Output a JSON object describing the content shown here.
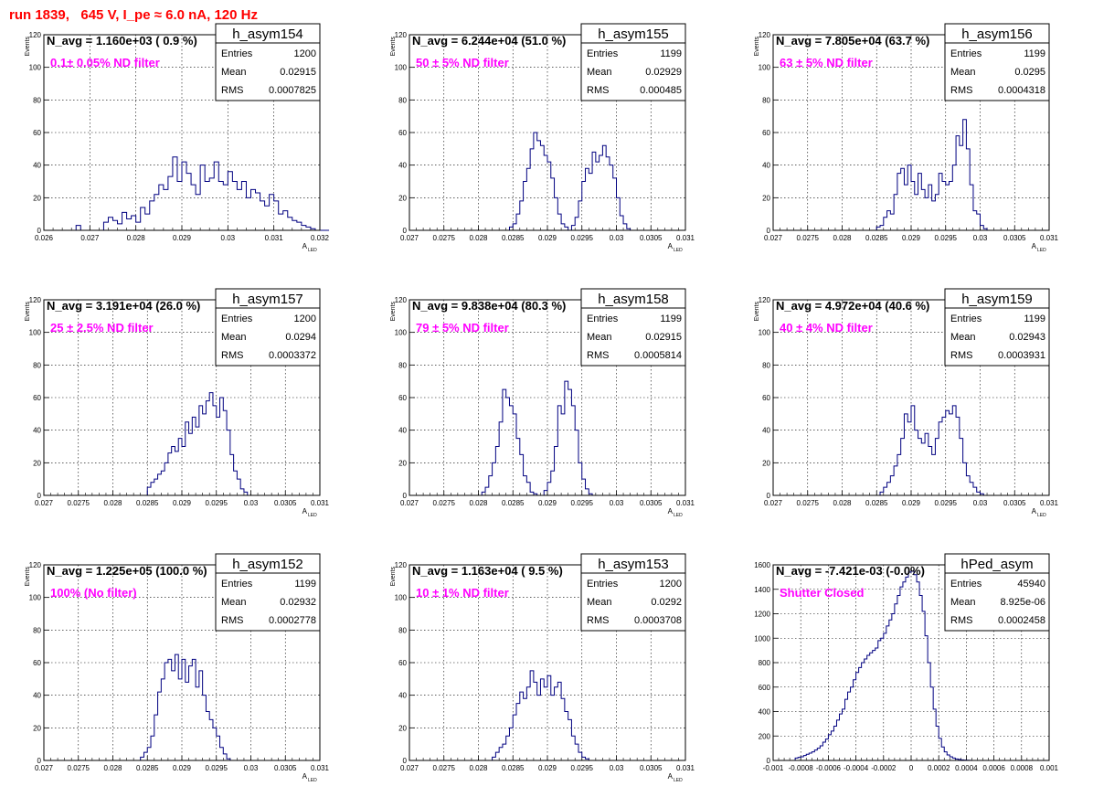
{
  "run_title": "run 1839,   645 V, I_pe ≈ 6.0 nA, 120 Hz",
  "colors": {
    "title": "#ff0000",
    "filter_label": "#ff00ff",
    "histogram": "#000080",
    "grid": "#000000"
  },
  "chart_data": [
    {
      "type": "histogram",
      "name": "h_asym154",
      "navg": "N_avg = 1.160e+03 ( 0.9 %)",
      "filter": "0.1± 0.05% ND filter",
      "stats": {
        "entries": "1200",
        "mean": "0.02915",
        "rms": "0.0007825"
      },
      "xlabel": "A",
      "xlabel_sub": "LED",
      "ylabel": "Events",
      "xlim": [
        0.026,
        0.032
      ],
      "ylim": [
        0,
        120
      ],
      "grid": true,
      "xticks": [
        "0.026",
        "0.027",
        "0.028",
        "0.029",
        "0.03",
        "0.031",
        "0.032"
      ],
      "yticks": [
        "0",
        "20",
        "40",
        "60",
        "80",
        "100",
        "120"
      ],
      "bins": {
        "start": 0.0267,
        "width": 0.0001,
        "values": [
          3,
          0,
          0,
          0,
          0,
          0,
          5,
          8,
          6,
          4,
          11,
          7,
          9,
          5,
          14,
          10,
          18,
          22,
          28,
          25,
          33,
          45,
          30,
          42,
          35,
          28,
          22,
          40,
          30,
          32,
          42,
          30,
          28,
          36,
          30,
          25,
          30,
          20,
          25,
          23,
          18,
          15,
          22,
          18,
          10,
          12,
          8,
          6,
          5,
          3,
          2,
          1,
          0,
          0,
          0
        ]
      }
    },
    {
      "type": "histogram",
      "name": "h_asym155",
      "navg": "N_avg = 6.244e+04 (51.0 %)",
      "filter": "50 ± 5% ND filter",
      "stats": {
        "entries": "1199",
        "mean": "0.02929",
        "rms": "0.000485"
      },
      "xlabel": "A",
      "xlabel_sub": "LED",
      "ylabel": "Events",
      "xlim": [
        0.027,
        0.031
      ],
      "ylim": [
        0,
        120
      ],
      "grid": true,
      "xticks": [
        "0.027",
        "0.0275",
        "0.028",
        "0.0285",
        "0.029",
        "0.0295",
        "0.03",
        "0.0305",
        "0.031"
      ],
      "yticks": [
        "0",
        "20",
        "40",
        "60",
        "80",
        "100",
        "120"
      ],
      "bins": {
        "start": 0.02845,
        "width": 5e-05,
        "values": [
          2,
          4,
          10,
          18,
          30,
          38,
          50,
          60,
          55,
          52,
          46,
          42,
          32,
          20,
          10,
          4,
          2,
          0,
          3,
          8,
          18,
          30,
          38,
          35,
          48,
          42,
          46,
          52,
          45,
          40,
          32,
          20,
          9,
          4,
          1,
          0
        ]
      }
    },
    {
      "type": "histogram",
      "name": "h_asym156",
      "navg": "N_avg = 7.805e+04 (63.7 %)",
      "filter": "63 ± 5% ND filter",
      "stats": {
        "entries": "1199",
        "mean": "0.0295",
        "rms": "0.0004318"
      },
      "xlabel": "A",
      "xlabel_sub": "LED",
      "ylabel": "Events",
      "xlim": [
        0.027,
        0.031
      ],
      "ylim": [
        0,
        120
      ],
      "grid": true,
      "xticks": [
        "0.027",
        "0.0275",
        "0.028",
        "0.0285",
        "0.029",
        "0.0295",
        "0.03",
        "0.0305",
        "0.031"
      ],
      "yticks": [
        "0",
        "20",
        "40",
        "60",
        "80",
        "100",
        "120"
      ],
      "bins": {
        "start": 0.0285,
        "width": 5e-05,
        "values": [
          2,
          3,
          8,
          12,
          10,
          22,
          35,
          38,
          28,
          40,
          30,
          22,
          35,
          25,
          20,
          28,
          18,
          22,
          35,
          30,
          28,
          30,
          40,
          58,
          52,
          68,
          50,
          28,
          12,
          10,
          3,
          1,
          0
        ]
      }
    },
    {
      "type": "histogram",
      "name": "h_asym157",
      "navg": "N_avg = 3.191e+04 (26.0 %)",
      "filter": "25 ± 2.5% ND filter",
      "stats": {
        "entries": "1200",
        "mean": "0.0294",
        "rms": "0.0003372"
      },
      "xlabel": "A",
      "xlabel_sub": "LED",
      "ylabel": "Events",
      "xlim": [
        0.027,
        0.031
      ],
      "ylim": [
        0,
        120
      ],
      "grid": true,
      "xticks": [
        "0.027",
        "0.0275",
        "0.028",
        "0.0285",
        "0.029",
        "0.0295",
        "0.03",
        "0.0305",
        "0.031"
      ],
      "yticks": [
        "0",
        "20",
        "40",
        "60",
        "80",
        "100",
        "120"
      ],
      "bins": {
        "start": 0.02845,
        "width": 5e-05,
        "values": [
          0,
          5,
          8,
          10,
          13,
          15,
          20,
          26,
          30,
          27,
          35,
          30,
          45,
          38,
          48,
          42,
          55,
          50,
          58,
          63,
          55,
          48,
          60,
          52,
          40,
          25,
          15,
          10,
          4,
          2,
          0
        ]
      }
    },
    {
      "type": "histogram",
      "name": "h_asym158",
      "navg": "N_avg = 9.838e+04 (80.3 %)",
      "filter": "79 ± 5% ND filter",
      "stats": {
        "entries": "1199",
        "mean": "0.02915",
        "rms": "0.0005814"
      },
      "xlabel": "A",
      "xlabel_sub": "LED",
      "ylabel": "Events",
      "xlim": [
        0.027,
        0.031
      ],
      "ylim": [
        0,
        120
      ],
      "grid": true,
      "xticks": [
        "0.027",
        "0.0275",
        "0.028",
        "0.0285",
        "0.029",
        "0.0295",
        "0.03",
        "0.0305",
        "0.031"
      ],
      "yticks": [
        "0",
        "20",
        "40",
        "60",
        "80",
        "100",
        "120"
      ],
      "bins": {
        "start": 0.02805,
        "width": 5e-05,
        "values": [
          2,
          5,
          12,
          20,
          30,
          45,
          65,
          60,
          55,
          50,
          35,
          25,
          12,
          8,
          2,
          1,
          0,
          0,
          3,
          8,
          15,
          30,
          55,
          50,
          70,
          65,
          55,
          40,
          20,
          10,
          4,
          1,
          0
        ]
      }
    },
    {
      "type": "histogram",
      "name": "h_asym159",
      "navg": "N_avg = 4.972e+04 (40.6 %)",
      "filter": "40 ± 4% ND filter",
      "stats": {
        "entries": "1199",
        "mean": "0.02943",
        "rms": "0.0003931"
      },
      "xlabel": "A",
      "xlabel_sub": "LED",
      "ylabel": "Events",
      "xlim": [
        0.027,
        0.031
      ],
      "ylim": [
        0,
        120
      ],
      "grid": true,
      "xticks": [
        "0.027",
        "0.0275",
        "0.028",
        "0.0285",
        "0.029",
        "0.0295",
        "0.03",
        "0.0305",
        "0.031"
      ],
      "yticks": [
        "0",
        "20",
        "40",
        "60",
        "80",
        "100",
        "120"
      ],
      "bins": {
        "start": 0.02855,
        "width": 5e-05,
        "values": [
          2,
          5,
          8,
          12,
          18,
          25,
          35,
          50,
          45,
          55,
          40,
          35,
          32,
          38,
          30,
          25,
          35,
          45,
          48,
          52,
          50,
          55,
          48,
          35,
          20,
          12,
          8,
          5,
          2,
          1
        ]
      }
    },
    {
      "type": "histogram",
      "name": "h_asym152",
      "navg": "N_avg = 1.225e+05 (100.0 %)",
      "filter": "100% (No filter)",
      "stats": {
        "entries": "1199",
        "mean": "0.02932",
        "rms": "0.0002778"
      },
      "xlabel": "A",
      "xlabel_sub": "LED",
      "ylabel": "Events",
      "xlim": [
        0.027,
        0.031
      ],
      "ylim": [
        0,
        120
      ],
      "grid": true,
      "xticks": [
        "0.027",
        "0.0275",
        "0.028",
        "0.0285",
        "0.029",
        "0.0295",
        "0.03",
        "0.0305",
        "0.031"
      ],
      "yticks": [
        "0",
        "20",
        "40",
        "60",
        "80",
        "100",
        "120"
      ],
      "bins": {
        "start": 0.0284,
        "width": 5e-05,
        "values": [
          2,
          5,
          8,
          15,
          28,
          42,
          50,
          60,
          62,
          55,
          65,
          50,
          62,
          48,
          58,
          62,
          45,
          55,
          40,
          30,
          25,
          20,
          15,
          8,
          4,
          1
        ]
      }
    },
    {
      "type": "histogram",
      "name": "h_asym153",
      "navg": "N_avg = 1.163e+04 ( 9.5 %)",
      "filter": "10 ± 1% ND filter",
      "stats": {
        "entries": "1200",
        "mean": "0.0292",
        "rms": "0.0003708"
      },
      "xlabel": "A",
      "xlabel_sub": "LED",
      "ylabel": "Events",
      "xlim": [
        0.027,
        0.031
      ],
      "ylim": [
        0,
        120
      ],
      "grid": true,
      "xticks": [
        "0.027",
        "0.0275",
        "0.028",
        "0.0285",
        "0.029",
        "0.0295",
        "0.03",
        "0.0305",
        "0.031"
      ],
      "yticks": [
        "0",
        "20",
        "40",
        "60",
        "80",
        "100",
        "120"
      ],
      "bins": {
        "start": 0.0282,
        "width": 5e-05,
        "values": [
          2,
          5,
          8,
          10,
          15,
          20,
          28,
          35,
          42,
          38,
          45,
          55,
          48,
          40,
          50,
          45,
          52,
          40,
          45,
          48,
          38,
          30,
          25,
          15,
          10,
          5,
          2,
          1
        ]
      }
    },
    {
      "type": "histogram",
      "name": "hPed_asym",
      "navg": "N_avg = -7.421e-03 (-0.0%)",
      "filter": "Shutter Closed",
      "stats": {
        "entries": "45940",
        "mean": "8.925e-06",
        "rms": "0.0002458"
      },
      "xlabel": "",
      "xlabel_sub": "",
      "ylabel": "",
      "xlim": [
        -0.001,
        0.001
      ],
      "ylim": [
        0,
        1600
      ],
      "grid": true,
      "xticks": [
        "-0.001",
        "-0.0008",
        "-0.0006",
        "-0.0004",
        "-0.0002",
        "0",
        "0.0002",
        "0.0004",
        "0.0006",
        "0.0008",
        "0.001"
      ],
      "yticks": [
        "0",
        "200",
        "400",
        "600",
        "800",
        "1000",
        "1200",
        "1400",
        "1600"
      ],
      "bins": {
        "start": -0.00084,
        "width": 2e-05,
        "values": [
          20,
          25,
          30,
          40,
          50,
          60,
          70,
          85,
          100,
          120,
          150,
          175,
          210,
          240,
          280,
          330,
          380,
          420,
          500,
          560,
          600,
          660,
          720,
          760,
          800,
          830,
          860,
          880,
          900,
          920,
          980,
          1000,
          1040,
          1100,
          1150,
          1200,
          1280,
          1350,
          1420,
          1460,
          1500,
          1540,
          1550,
          1520,
          1460,
          1350,
          1220,
          1020,
          800,
          600,
          420,
          280,
          180,
          110,
          70,
          45,
          30,
          20,
          12,
          8,
          5,
          3,
          2,
          1
        ]
      }
    }
  ]
}
